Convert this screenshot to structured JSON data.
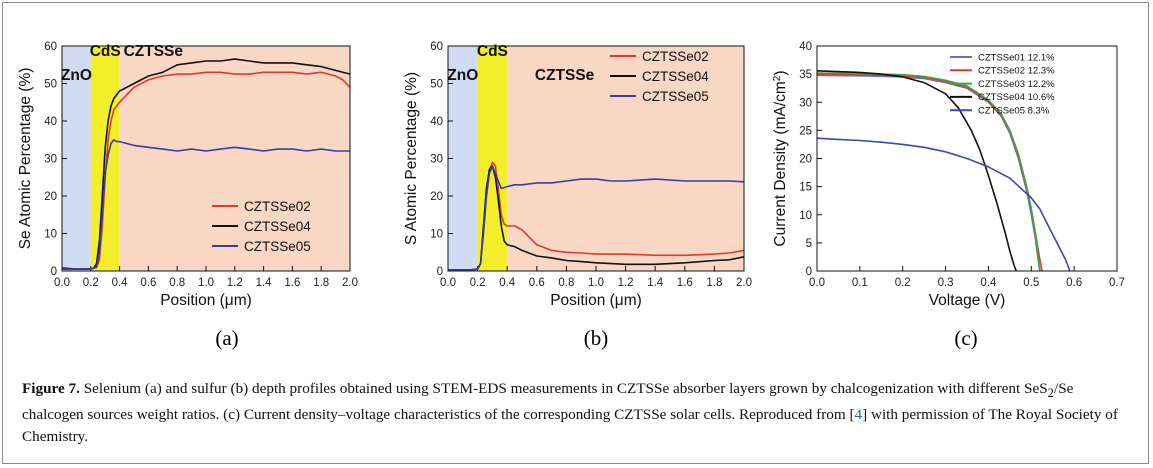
{
  "chart_data": [
    {
      "type": "line",
      "panel_label": "(a)",
      "xlabel": "Position (μm)",
      "ylabel": "Se Atomic Percentage (%)",
      "xlim": [
        0.0,
        2.0
      ],
      "ylim": [
        0,
        60
      ],
      "xticks": [
        "0.0",
        "0.2",
        "0.4",
        "0.6",
        "0.8",
        "1.0",
        "1.2",
        "1.4",
        "1.6",
        "1.8",
        "2.0"
      ],
      "xtick_values": [
        0,
        0.2,
        0.4,
        0.6,
        0.8,
        1.0,
        1.2,
        1.4,
        1.6,
        1.8,
        2.0
      ],
      "yticks": [
        "0",
        "10",
        "20",
        "30",
        "40",
        "50",
        "60"
      ],
      "ytick_values": [
        0,
        10,
        20,
        30,
        40,
        50,
        60
      ],
      "regions": [
        {
          "label": "ZnO",
          "x0": 0.0,
          "x1": 0.2,
          "color": "#cfdcf3"
        },
        {
          "label": "CdS",
          "x0": 0.2,
          "x1": 0.4,
          "color": "#f2ef2a"
        },
        {
          "label": "CZTSSe",
          "x0": 0.4,
          "x1": 2.0,
          "color": "#f8d7c4"
        }
      ],
      "legend_position": "lower-right",
      "series": [
        {
          "name": "CZTSSe02",
          "color": "#e03a2c",
          "x": [
            0,
            0.1,
            0.2,
            0.24,
            0.26,
            0.28,
            0.3,
            0.32,
            0.34,
            0.36,
            0.4,
            0.45,
            0.5,
            0.6,
            0.7,
            0.8,
            0.9,
            1.0,
            1.1,
            1.2,
            1.3,
            1.4,
            1.5,
            1.6,
            1.7,
            1.8,
            1.9,
            1.95,
            2.0
          ],
          "y": [
            0.5,
            0.5,
            0.6,
            1,
            3,
            12,
            25,
            35,
            40,
            43,
            45,
            47,
            49,
            51,
            52,
            52.5,
            52.5,
            53,
            53,
            52.5,
            52.5,
            53,
            53,
            53,
            52.5,
            53,
            52,
            51,
            49
          ]
        },
        {
          "name": "CZTSSe04",
          "color": "#111111",
          "x": [
            0,
            0.1,
            0.2,
            0.22,
            0.24,
            0.26,
            0.28,
            0.3,
            0.32,
            0.34,
            0.36,
            0.4,
            0.45,
            0.5,
            0.6,
            0.7,
            0.8,
            0.9,
            1.0,
            1.1,
            1.2,
            1.3,
            1.4,
            1.5,
            1.6,
            1.7,
            1.8,
            1.9,
            2.0
          ],
          "y": [
            0.8,
            0.5,
            0.5,
            0.8,
            2,
            8,
            20,
            33,
            40,
            44,
            46,
            48,
            49,
            50,
            52,
            53,
            55,
            55.5,
            56,
            56,
            56.5,
            56,
            55.5,
            55.5,
            55.5,
            55,
            54.5,
            53.5,
            52.5
          ]
        },
        {
          "name": "CZTSSe05",
          "color": "#3a3da0",
          "x": [
            0,
            0.1,
            0.2,
            0.24,
            0.26,
            0.28,
            0.3,
            0.32,
            0.34,
            0.36,
            0.38,
            0.4,
            0.45,
            0.5,
            0.6,
            0.7,
            0.8,
            0.9,
            1.0,
            1.1,
            1.2,
            1.3,
            1.4,
            1.5,
            1.6,
            1.7,
            1.8,
            1.9,
            2.0
          ],
          "y": [
            0.5,
            0.5,
            0.5,
            1,
            5,
            15,
            26,
            31,
            34,
            35,
            34.5,
            34.5,
            34,
            33.5,
            33,
            32.5,
            32,
            32.5,
            32,
            32.5,
            33,
            32.5,
            32,
            32.5,
            32.5,
            32,
            32.5,
            32,
            32
          ]
        }
      ]
    },
    {
      "type": "line",
      "panel_label": "(b)",
      "xlabel": "Position (μm)",
      "ylabel": "S Atomic Percentage (%)",
      "xlim": [
        0.0,
        2.0
      ],
      "ylim": [
        0,
        60
      ],
      "xticks": [
        "0.0",
        "0.2",
        "0.4",
        "0.6",
        "0.8",
        "1.0",
        "1.2",
        "1.4",
        "1.6",
        "1.8",
        "2.0"
      ],
      "xtick_values": [
        0,
        0.2,
        0.4,
        0.6,
        0.8,
        1.0,
        1.2,
        1.4,
        1.6,
        1.8,
        2.0
      ],
      "yticks": [
        "0",
        "10",
        "20",
        "30",
        "40",
        "50",
        "60"
      ],
      "ytick_values": [
        0,
        10,
        20,
        30,
        40,
        50,
        60
      ],
      "regions": [
        {
          "label": "ZnO",
          "x0": 0.0,
          "x1": 0.2,
          "color": "#cfdcf3"
        },
        {
          "label": "CdS",
          "x0": 0.2,
          "x1": 0.4,
          "color": "#f2ef2a"
        },
        {
          "label": "CZTSSe",
          "x0": 0.4,
          "x1": 2.0,
          "color": "#f8d7c4"
        }
      ],
      "legend_position": "top-right",
      "series": [
        {
          "name": "CZTSSe02",
          "color": "#e03a2c",
          "x": [
            0,
            0.15,
            0.2,
            0.22,
            0.24,
            0.26,
            0.28,
            0.3,
            0.32,
            0.34,
            0.36,
            0.38,
            0.4,
            0.45,
            0.5,
            0.55,
            0.6,
            0.7,
            0.8,
            0.9,
            1.0,
            1.2,
            1.4,
            1.6,
            1.8,
            1.9,
            2.0
          ],
          "y": [
            0.3,
            0.3,
            0.5,
            2,
            12,
            22,
            27,
            29,
            28,
            22,
            15,
            12.5,
            12,
            12,
            11,
            9,
            7,
            5.5,
            5,
            4.8,
            4.5,
            4.5,
            4.2,
            4.2,
            4.5,
            4.8,
            5.5
          ]
        },
        {
          "name": "CZTSSe04",
          "color": "#111111",
          "x": [
            0,
            0.15,
            0.2,
            0.22,
            0.24,
            0.26,
            0.28,
            0.3,
            0.32,
            0.34,
            0.36,
            0.38,
            0.4,
            0.45,
            0.5,
            0.6,
            0.7,
            0.8,
            0.9,
            1.0,
            1.2,
            1.4,
            1.6,
            1.8,
            1.9,
            2.0
          ],
          "y": [
            0.3,
            0.3,
            0.5,
            2,
            12,
            22,
            27,
            28,
            25,
            19,
            12,
            8,
            7,
            6.5,
            5.5,
            4,
            3.5,
            2.8,
            2.5,
            2.2,
            1.8,
            1.8,
            2.2,
            2.8,
            3,
            3.8
          ]
        },
        {
          "name": "CZTSSe05",
          "color": "#3a3da0",
          "x": [
            0,
            0.15,
            0.2,
            0.22,
            0.24,
            0.26,
            0.28,
            0.3,
            0.32,
            0.34,
            0.36,
            0.4,
            0.45,
            0.5,
            0.6,
            0.7,
            0.8,
            0.9,
            1.0,
            1.1,
            1.2,
            1.4,
            1.6,
            1.8,
            1.9,
            2.0
          ],
          "y": [
            0.3,
            0.3,
            0.5,
            2,
            10,
            20,
            26,
            28,
            26,
            24,
            22,
            22.5,
            23,
            23,
            23.5,
            23.5,
            24,
            24.5,
            24.5,
            24,
            24,
            24.5,
            24,
            24,
            24,
            23.8
          ]
        }
      ]
    },
    {
      "type": "line",
      "panel_label": "(c)",
      "xlabel": "Voltage (V)",
      "ylabel": "Current Density (mA/cm²)",
      "ylabel_main": "Current Density (mA/cm",
      "ylabel_sup": "2",
      "ylabel_close": ")",
      "xlim": [
        0.0,
        0.7
      ],
      "ylim": [
        0,
        40
      ],
      "xticks": [
        "0.0",
        "0.1",
        "0.2",
        "0.3",
        "0.4",
        "0.5",
        "0.6",
        "0.7"
      ],
      "xtick_values": [
        0,
        0.1,
        0.2,
        0.3,
        0.4,
        0.5,
        0.6,
        0.7
      ],
      "yticks": [
        "0",
        "5",
        "10",
        "15",
        "20",
        "25",
        "30",
        "35",
        "40"
      ],
      "ytick_values": [
        0,
        5,
        10,
        15,
        20,
        25,
        30,
        35,
        40
      ],
      "legend_position": "top-right",
      "series": [
        {
          "name": "CZTSSe01",
          "label": "CZTSSe01 12.1%",
          "color": "#6a6fc4",
          "x": [
            0,
            0.1,
            0.2,
            0.25,
            0.3,
            0.35,
            0.4,
            0.43,
            0.45,
            0.47,
            0.49,
            0.5,
            0.51,
            0.515,
            0.52
          ],
          "y": [
            34.8,
            34.7,
            34.5,
            34.2,
            33.5,
            32.5,
            30,
            27.5,
            24.5,
            20,
            14,
            10,
            5.5,
            2.5,
            0
          ]
        },
        {
          "name": "CZTSSe02",
          "label": "CZTSSe02 12.3%",
          "color": "#e03a2c",
          "x": [
            0,
            0.1,
            0.2,
            0.25,
            0.3,
            0.35,
            0.4,
            0.43,
            0.45,
            0.47,
            0.49,
            0.5,
            0.51,
            0.52,
            0.525
          ],
          "y": [
            35,
            34.9,
            34.7,
            34.4,
            33.7,
            32.7,
            30.2,
            27.7,
            24.8,
            20.5,
            14.5,
            11,
            6.5,
            2,
            0
          ]
        },
        {
          "name": "CZTSSe03",
          "label": "CZTSSe03 12.2%",
          "color": "#3aa83a",
          "x": [
            0,
            0.1,
            0.2,
            0.25,
            0.3,
            0.35,
            0.4,
            0.43,
            0.45,
            0.47,
            0.49,
            0.5,
            0.51,
            0.515,
            0.52
          ],
          "y": [
            35.2,
            35.1,
            34.9,
            34.6,
            33.9,
            32.9,
            30.4,
            27.9,
            25,
            20.8,
            14.8,
            11,
            6.5,
            3,
            0
          ]
        },
        {
          "name": "CZTSSe04",
          "label": "CZTSSe04 10.6%",
          "color": "#111111",
          "x": [
            0,
            0.1,
            0.15,
            0.2,
            0.25,
            0.3,
            0.33,
            0.36,
            0.38,
            0.4,
            0.42,
            0.44,
            0.45,
            0.46,
            0.465
          ],
          "y": [
            35.6,
            35.3,
            35,
            34.5,
            33.5,
            31.5,
            29,
            25,
            21.5,
            17,
            12,
            6.5,
            3.5,
            1,
            0
          ]
        },
        {
          "name": "CZTSSe05",
          "label": "CZTSSe05  8.3%",
          "color": "#3a49b0",
          "x": [
            0,
            0.05,
            0.1,
            0.15,
            0.2,
            0.25,
            0.3,
            0.35,
            0.4,
            0.45,
            0.5,
            0.52,
            0.54,
            0.56,
            0.58,
            0.59
          ],
          "y": [
            23.6,
            23.4,
            23.2,
            22.9,
            22.5,
            22,
            21.2,
            20,
            18.5,
            16.5,
            13,
            11,
            8,
            5,
            2,
            0
          ]
        }
      ]
    }
  ],
  "caption": {
    "figure_label": "Figure 7.",
    "text_1": " Selenium (a) and sulfur (b) depth profiles obtained using STEM-EDS measurements in CZTSSe absorber layers grown by chalcogenization with different SeS",
    "text_sub": "2",
    "text_2": "/Se chalcogen sources weight ratios. (c) Current density–voltage characteristics of the corresponding CZTSSe solar cells. Reproduced from [",
    "citation": "4",
    "text_3": "] with permission of The Royal Society of Chemistry."
  }
}
